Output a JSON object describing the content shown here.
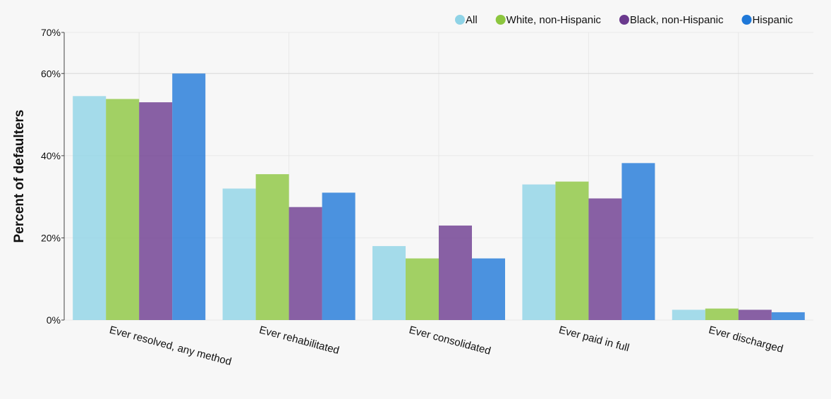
{
  "chart_data": {
    "type": "bar",
    "title": "",
    "xlabel": "",
    "ylabel": "Percent of defaulters",
    "ylim": [
      0,
      70
    ],
    "yticks": [
      {
        "value": 0,
        "label": "0%"
      },
      {
        "value": 20,
        "label": "20%"
      },
      {
        "value": 40,
        "label": "40%"
      },
      {
        "value": 60,
        "label": "60%"
      },
      {
        "value": 70,
        "label": "70%"
      }
    ],
    "grid": true,
    "legend_position": "top-right",
    "categories": [
      "Ever resolved, any method",
      "Ever rehabilitated",
      "Ever consolidated",
      "Ever paid in full",
      "Ever discharged"
    ],
    "series": [
      {
        "name": "All",
        "color": "#8fd3e6",
        "values": [
          54.5,
          32,
          18,
          33,
          2.5
        ]
      },
      {
        "name": "White, non-Hispanic",
        "color": "#8cc63f",
        "values": [
          53.8,
          35.5,
          15,
          33.7,
          2.8
        ]
      },
      {
        "name": "Black, non-Hispanic",
        "color": "#6b3a8e",
        "values": [
          53,
          27.5,
          23,
          29.6,
          2.5
        ]
      },
      {
        "name": "Hispanic",
        "color": "#1f78d8",
        "values": [
          60,
          31,
          15,
          38.2,
          1.9
        ]
      }
    ]
  }
}
